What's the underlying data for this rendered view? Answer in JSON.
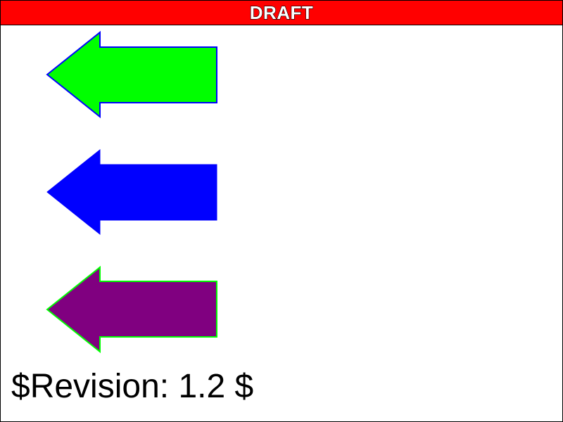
{
  "banner": {
    "text": "DRAFT",
    "color": "#ff0000",
    "text_color": "#ffffff"
  },
  "arrows": [
    {
      "name": "green-left-arrow",
      "direction": "left",
      "fill": "#00ff00",
      "stroke": "#0000ff"
    },
    {
      "name": "blue-left-arrow",
      "direction": "left",
      "fill": "#0000ff",
      "stroke": "#0000ff"
    },
    {
      "name": "purple-left-arrow",
      "direction": "left",
      "fill": "#800080",
      "stroke": "#00ff00"
    }
  ],
  "footer": {
    "revision": "$Revision: 1.2 $"
  }
}
